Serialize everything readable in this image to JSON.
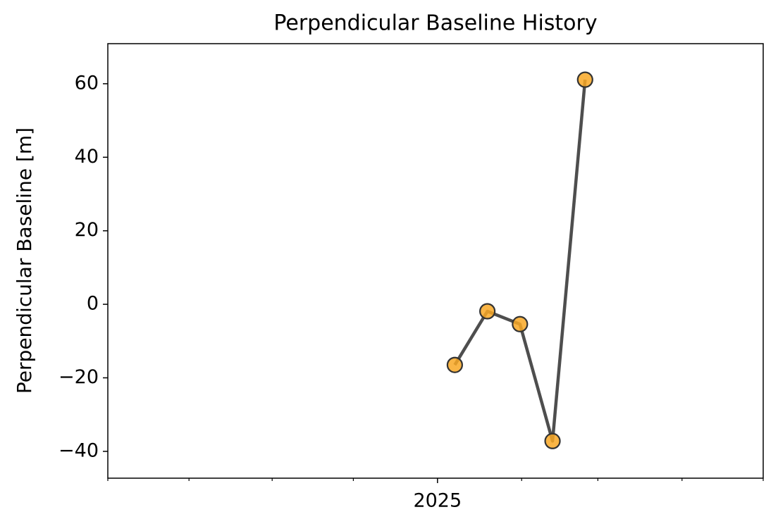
{
  "chart_data": {
    "type": "line",
    "title": "Perpendicular Baseline History",
    "ylabel": "Perpendicular Baseline [m]",
    "x": [
      2025.0175,
      2025.0504,
      2025.0833,
      2025.1162,
      2025.1491
    ],
    "series": [
      {
        "values": [
          -16.5,
          -1.9,
          -5.4,
          -37.2,
          61.1
        ],
        "color": "#444444",
        "marker_color": "#f9a825"
      }
    ],
    "xlim": [
      2024.667,
      2025.329
    ],
    "xticks": [
      2025
    ],
    "xminorticks": [
      2024.667,
      2024.749,
      2024.833,
      2024.915,
      2025.085,
      2025.162,
      2025.247,
      2025.329
    ],
    "ylim": [
      -47.3,
      70.9
    ],
    "yticks": [
      {
        "value": -40,
        "label": "−40"
      },
      {
        "value": -20,
        "label": "−20"
      },
      0,
      20,
      40,
      60
    ],
    "grid": false
  }
}
